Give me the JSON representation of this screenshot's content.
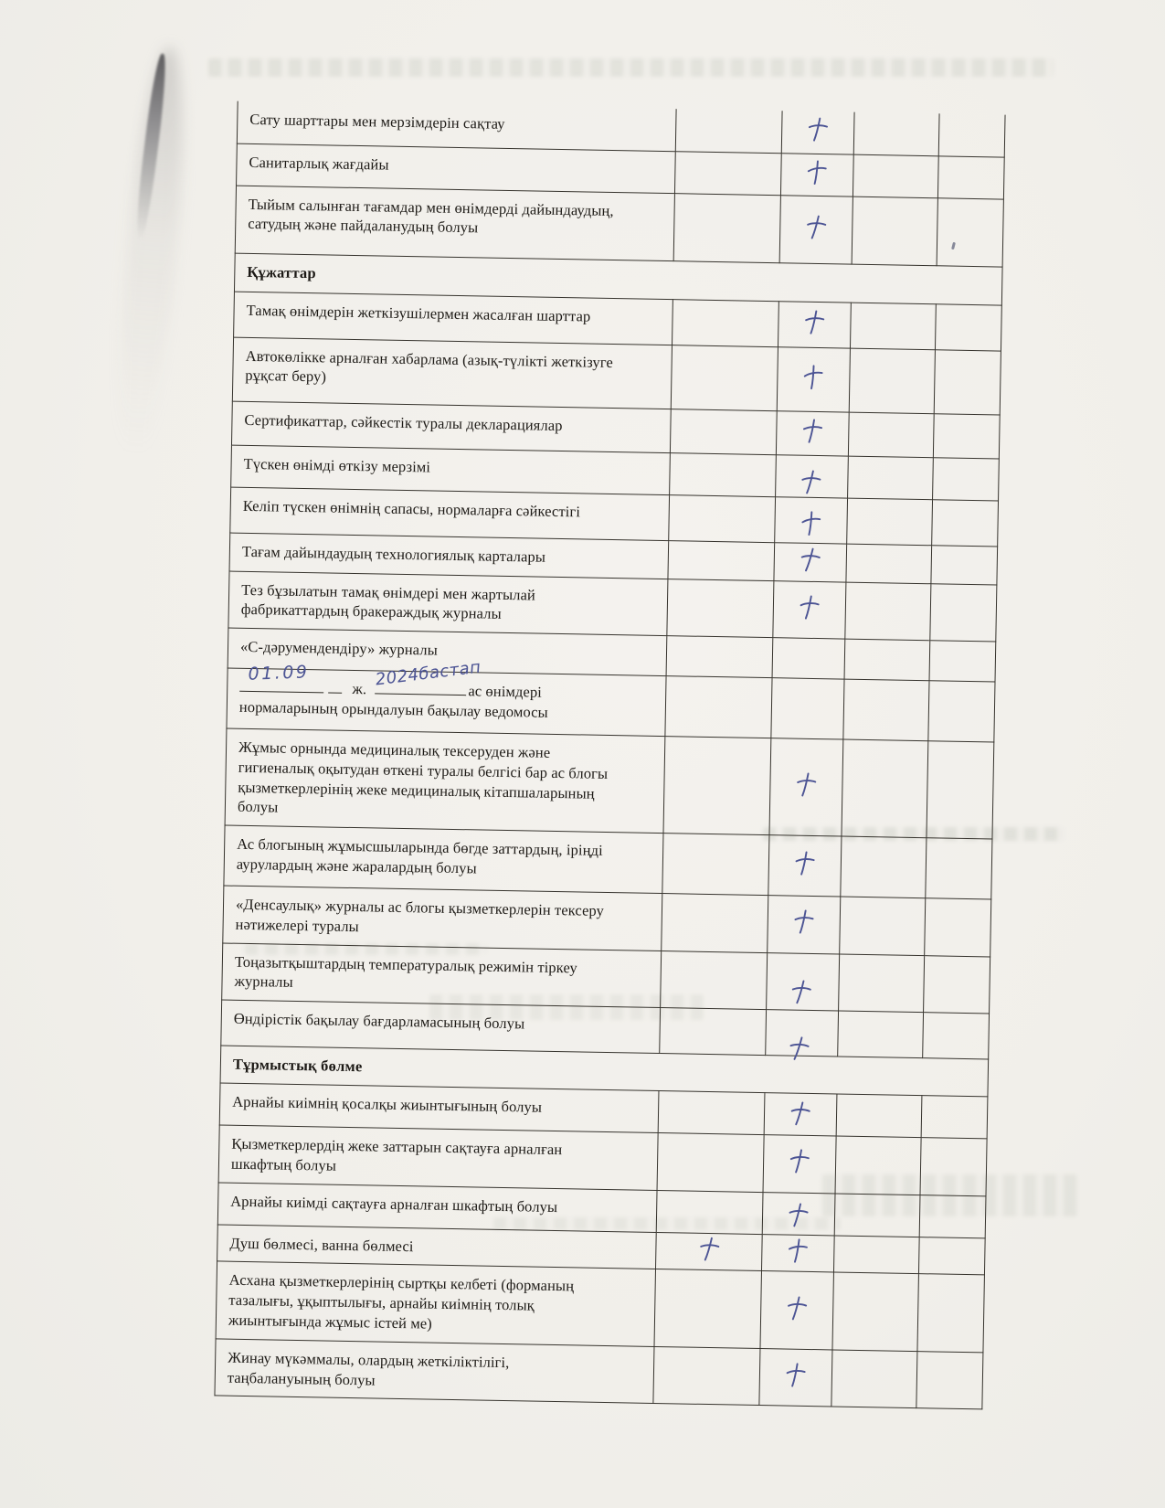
{
  "document": {
    "colors": {
      "paper": "#f1efeb",
      "table_lines": "#36332d",
      "printed_text": "#1e1b17",
      "handwriting_ink": "#4c5494"
    }
  },
  "table": {
    "rows": [
      {
        "type": "item",
        "text": "Сату шарттары мен мерзімдерін сақтау",
        "marks": [
          "c3"
        ]
      },
      {
        "type": "item",
        "text": "Санитарлық жағдайы",
        "marks": [
          "c3"
        ]
      },
      {
        "type": "item",
        "text": "Тыйым салынған тағамдар мен өнімдерді дайындаудың, сатудың және пайдаланудың болуы",
        "marks": [
          "c3"
        ]
      },
      {
        "type": "section",
        "text": "Құжаттар",
        "marks": []
      },
      {
        "type": "item",
        "text": "Тамақ өнімдерін жеткізушілермен жасалған шарттар",
        "marks": [
          "c3"
        ]
      },
      {
        "type": "item",
        "text": "Автокөлікке арналған хабарлама (азық-түлікті жеткізуге рұқсат беру)",
        "marks": [
          "c3"
        ]
      },
      {
        "type": "item",
        "text": "Сертификаттар, сәйкестік туралы декларациялар",
        "marks": [
          "c3"
        ]
      },
      {
        "type": "item",
        "text": "Түскен өнімді өткізу мерзімі",
        "marks": [
          "c3"
        ]
      },
      {
        "type": "item",
        "text": "Келіп түскен өнімнің сапасы, нормаларға сәйкестігі",
        "marks": [
          "c3"
        ]
      },
      {
        "type": "item",
        "text": "Тағам дайындаудың технологиялық карталары",
        "marks": [
          "c3"
        ]
      },
      {
        "type": "item",
        "text": "Тез бұзылатын тамақ өнімдері мен жартылай фабрикаттардың бракераждық журналы",
        "marks": [
          "c3"
        ]
      },
      {
        "type": "item",
        "text": "«С-дәрумендендіру» журналы",
        "marks": []
      },
      {
        "type": "fill",
        "blank1": "01.09",
        "label": "ж.",
        "blank2": "2024бастап",
        "text": "ас өнімдері нормаларының орындалуын бақылау ведомосы",
        "marks": []
      },
      {
        "type": "item",
        "text": "Жұмыс орнында медициналық тексеруден және гигиеналық оқытудан өткені туралы белгісі бар ас блогы қызметкерлерінің жеке медициналық кітапшаларының болуы",
        "marks": [
          "c3"
        ]
      },
      {
        "type": "item",
        "text": "Ас блогының жұмысшыларында бөгде заттардың, іріңді аурулардың және жаралардың болуы",
        "marks": [
          "c3"
        ]
      },
      {
        "type": "item",
        "text": "«Денсаулық» журналы ас блогы қызметкерлерін тексеру нәтижелері туралы",
        "marks": [
          "c3"
        ]
      },
      {
        "type": "item",
        "text": "Тоңазытқыштардың температуралық режимін тіркеу журналы",
        "marks": [
          "c3"
        ]
      },
      {
        "type": "item",
        "text": "Өндірістік бақылау бағдарламасының болуы",
        "marks": [
          "c3"
        ]
      },
      {
        "type": "section",
        "text": "Тұрмыстық бөлме",
        "marks": []
      },
      {
        "type": "item",
        "text": "Арнайы киімнің қосалқы жиынтығының болуы",
        "marks": [
          "c3"
        ]
      },
      {
        "type": "item",
        "text": "Қызметкерлердің жеке заттарын сақтауға арналған шкафтың болуы",
        "marks": [
          "c3"
        ]
      },
      {
        "type": "item",
        "text": "Арнайы киімді сақтауға арналған шкафтың болуы",
        "marks": [
          "c3"
        ]
      },
      {
        "type": "item",
        "text": "Душ бөлмесі, ванна бөлмесі",
        "marks": [
          "c2",
          "c3"
        ]
      },
      {
        "type": "item",
        "text": "Асхана қызметкерлерінің сыртқы келбеті (форманың тазалығы, ұқыптылығы, арнайы киімнің толық жиынтығында жұмыс істей ме)",
        "marks": [
          "c3"
        ]
      },
      {
        "type": "item",
        "text": "Жинау мүкәммалы, олардың жеткіліктілігі, таңбалануының болуы",
        "marks": [
          "c3"
        ]
      }
    ]
  }
}
